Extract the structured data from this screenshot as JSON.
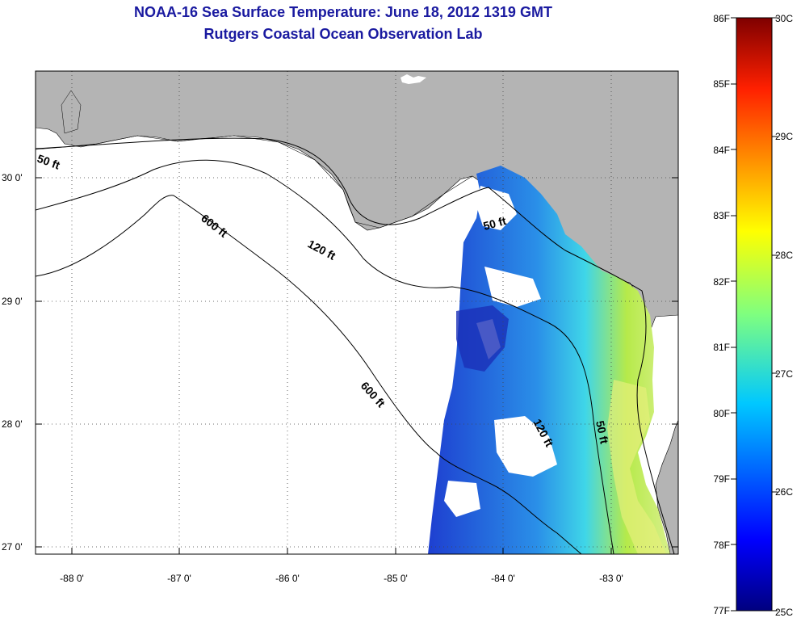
{
  "header": {
    "title": "NOAA-16 Sea Surface Temperature:  June 18, 2012 1319 GMT",
    "subtitle": "Rutgers Coastal Ocean Observation Lab"
  },
  "map": {
    "longitude_labels": [
      "-88 0'",
      "-87 0'",
      "-86 0'",
      "-85 0'",
      "-84 0'",
      "-83 0'"
    ],
    "latitude_labels": [
      "30 0'",
      "29 0'",
      "28 0'",
      "27 0'"
    ],
    "contour_labels": {
      "d50_west": "50 ft",
      "d600_north": "600 ft",
      "d120": "120 ft",
      "d50_north": "50 ft",
      "d600_south": "600 ft",
      "d120_east": "120 ft",
      "d50_east": "50 ft"
    },
    "colors": {
      "land": "#b4b4b4",
      "water_nodata": "#ffffff",
      "contour": "#000000"
    }
  },
  "colorbar": {
    "fahrenheit_labels": [
      "86F",
      "85F",
      "84F",
      "83F",
      "82F",
      "81F",
      "80F",
      "79F",
      "78F",
      "77F"
    ],
    "celsius_labels": [
      "30C",
      "29C",
      "28C",
      "27C",
      "26C",
      "25C"
    ],
    "range_f": [
      77,
      86
    ],
    "range_c": [
      25,
      30
    ]
  }
}
